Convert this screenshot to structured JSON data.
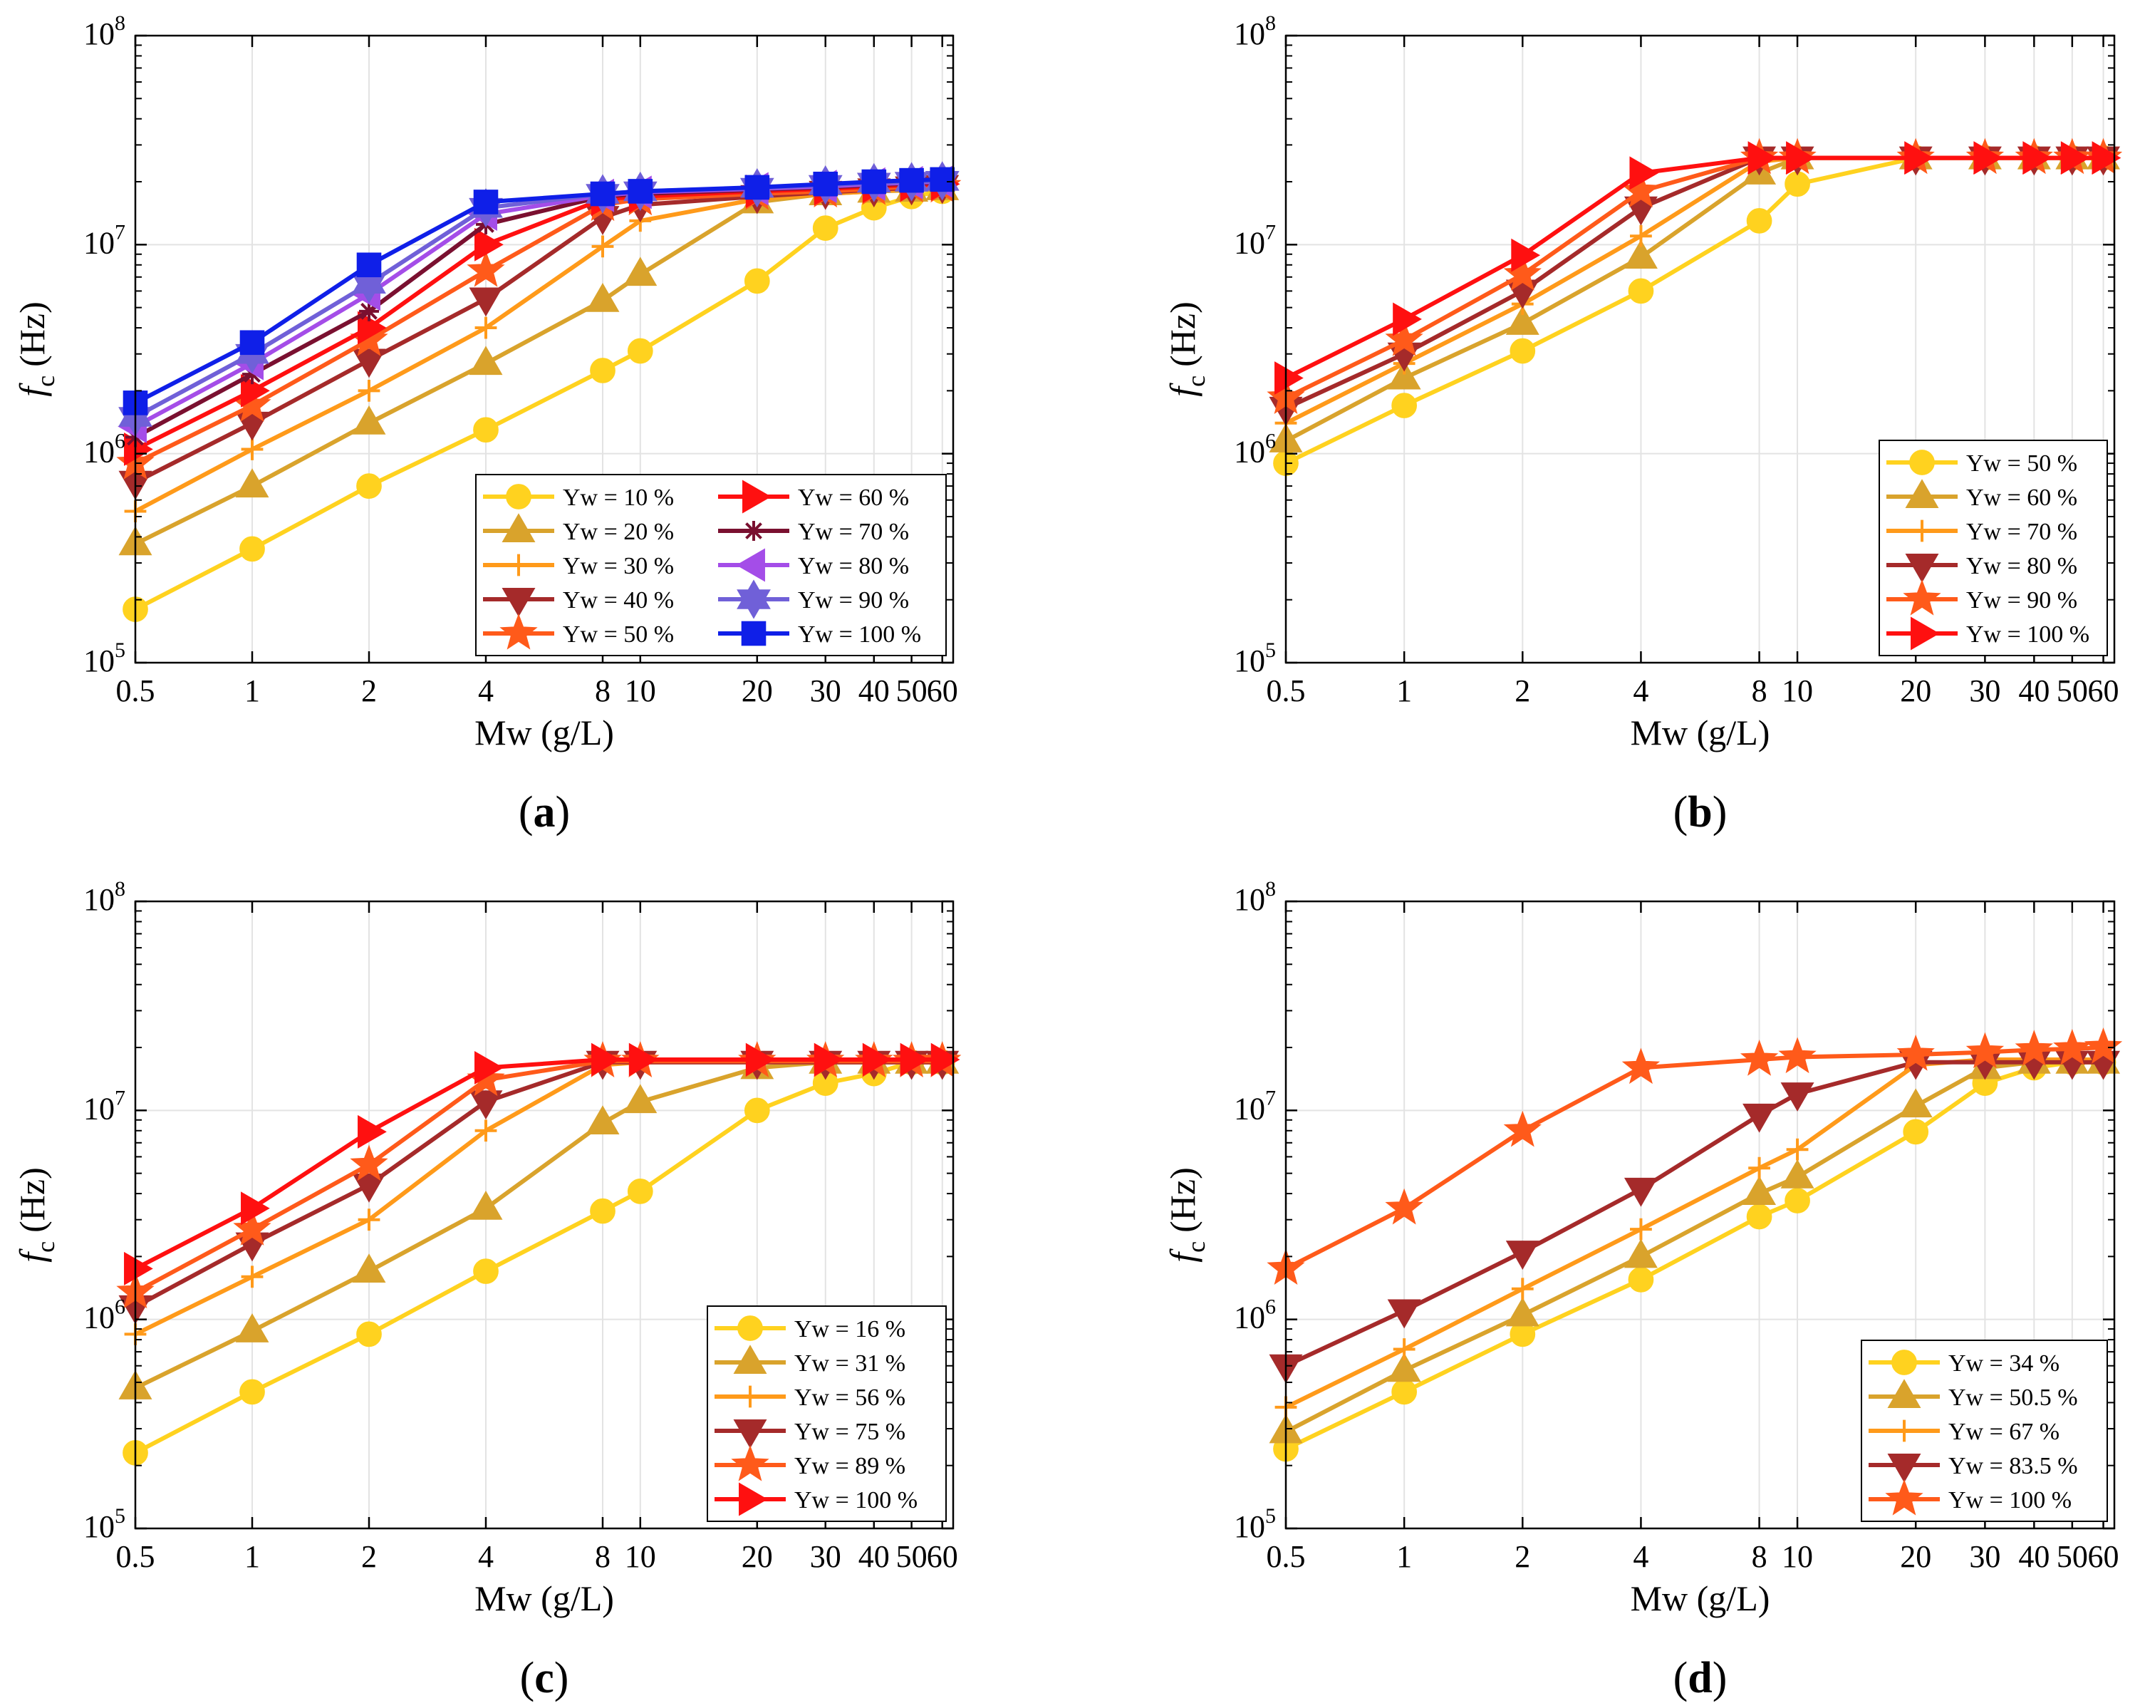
{
  "chart_data": [
    {
      "type": "line",
      "panel_label": "a",
      "title": "",
      "xlabel": "Mw (g/L)",
      "ylabel_main": "f",
      "ylabel_sub": "c",
      "ylabel_unit": "(Hz)",
      "xscale": "log",
      "yscale": "log",
      "xlim": [
        0.5,
        64
      ],
      "ylim": [
        100000,
        100000000
      ],
      "x": [
        0.5,
        1,
        2,
        4,
        8,
        10,
        20,
        30,
        40,
        50,
        60
      ],
      "x_tick_values": [
        0.5,
        1,
        2,
        4,
        8,
        10,
        20,
        30,
        40,
        50,
        60
      ],
      "x_tick_labels": [
        "0.5",
        "1",
        "2",
        "4",
        "8",
        "10",
        "20",
        "30",
        "40",
        "50",
        "60"
      ],
      "y_tick_values": [
        100000,
        1000000,
        10000000,
        100000000
      ],
      "y_tick_labels": [
        {
          "base": "10",
          "exp": "5"
        },
        {
          "base": "10",
          "exp": "6"
        },
        {
          "base": "10",
          "exp": "7"
        },
        {
          "base": "10",
          "exp": "8"
        }
      ],
      "grid": true,
      "legend_position": "bottom-right",
      "legend_columns": 2,
      "series": [
        {
          "name": "Yw = 10 %",
          "color": "#FFD21F",
          "marker": "circle",
          "values": [
            180000,
            350000,
            700000,
            1300000,
            2500000,
            3100000,
            6700000,
            12000000,
            15000000,
            17000000,
            18000000
          ]
        },
        {
          "name": "Yw = 20 %",
          "color": "#D9A32C",
          "marker": "triangle-up",
          "values": [
            370000,
            700000,
            1400000,
            2700000,
            5400000,
            7200000,
            16000000,
            17500000,
            18000000,
            18200000,
            18500000
          ]
        },
        {
          "name": "Yw = 30 %",
          "color": "#FF9A1A",
          "marker": "plus",
          "values": [
            530000,
            1050000,
            2000000,
            4000000,
            9800000,
            13000000,
            16500000,
            17500000,
            18000000,
            18500000,
            18500000
          ]
        },
        {
          "name": "Yw = 40 %",
          "color": "#A52A2A",
          "marker": "triangle-down",
          "values": [
            730000,
            1400000,
            2800000,
            5500000,
            13500000,
            15500000,
            17000000,
            17800000,
            18300000,
            18700000,
            19000000
          ]
        },
        {
          "name": "Yw = 50 %",
          "color": "#FF5A1A",
          "marker": "star",
          "values": [
            900000,
            1700000,
            3500000,
            7500000,
            15500000,
            16500000,
            17500000,
            18000000,
            18500000,
            19000000,
            19000000
          ]
        },
        {
          "name": "Yw = 60 %",
          "color": "#FF1010",
          "marker": "triangle-right",
          "values": [
            1050000,
            2000000,
            4000000,
            10000000,
            16500000,
            17000000,
            18000000,
            18500000,
            19000000,
            19300000,
            19500000
          ]
        },
        {
          "name": "Yw = 70 %",
          "color": "#7A1030",
          "marker": "asterisk",
          "values": [
            1200000,
            2400000,
            4800000,
            12500000,
            17000000,
            17500000,
            18300000,
            18800000,
            19300000,
            19600000,
            19800000
          ]
        },
        {
          "name": "Yw = 80 %",
          "color": "#A44DE8",
          "marker": "triangle-left",
          "values": [
            1350000,
            2700000,
            5800000,
            14000000,
            17200000,
            17800000,
            18500000,
            19000000,
            19500000,
            19800000,
            20000000
          ]
        },
        {
          "name": "Yw = 90 %",
          "color": "#7060D8",
          "marker": "hexagram",
          "values": [
            1500000,
            3000000,
            6500000,
            15000000,
            17500000,
            18000000,
            18700000,
            19300000,
            19800000,
            20000000,
            20200000
          ]
        },
        {
          "name": "Yw = 100 %",
          "color": "#0F1FE8",
          "marker": "square",
          "values": [
            1750000,
            3400000,
            8000000,
            16000000,
            17500000,
            18000000,
            18800000,
            19500000,
            20000000,
            20300000,
            20500000
          ]
        }
      ]
    },
    {
      "type": "line",
      "panel_label": "b",
      "title": "",
      "xlabel": "Mw (g/L)",
      "ylabel_main": "f",
      "ylabel_sub": "c",
      "ylabel_unit": "(Hz)",
      "xscale": "log",
      "yscale": "log",
      "xlim": [
        0.5,
        64
      ],
      "ylim": [
        100000,
        100000000
      ],
      "x": [
        0.5,
        1,
        2,
        4,
        8,
        10,
        20,
        30,
        40,
        50,
        60
      ],
      "x_tick_values": [
        0.5,
        1,
        2,
        4,
        8,
        10,
        20,
        30,
        40,
        50,
        60
      ],
      "x_tick_labels": [
        "0.5",
        "1",
        "2",
        "4",
        "8",
        "10",
        "20",
        "30",
        "40",
        "50",
        "60"
      ],
      "y_tick_values": [
        100000,
        1000000,
        10000000,
        100000000
      ],
      "y_tick_labels": [
        {
          "base": "10",
          "exp": "5"
        },
        {
          "base": "10",
          "exp": "6"
        },
        {
          "base": "10",
          "exp": "7"
        },
        {
          "base": "10",
          "exp": "8"
        }
      ],
      "grid": true,
      "legend_position": "bottom-right",
      "legend_columns": 1,
      "series": [
        {
          "name": "Yw = 50 %",
          "color": "#FFD21F",
          "marker": "circle",
          "values": [
            900000,
            1700000,
            3100000,
            6000000,
            13000000,
            19500000,
            26000000,
            26000000,
            26000000,
            26000000,
            26000000
          ]
        },
        {
          "name": "Yw = 60 %",
          "color": "#D9A32C",
          "marker": "triangle-up",
          "values": [
            1150000,
            2300000,
            4200000,
            8700000,
            22000000,
            26000000,
            26000000,
            26000000,
            26000000,
            26000000,
            26000000
          ]
        },
        {
          "name": "Yw = 70 %",
          "color": "#FF9A1A",
          "marker": "plus",
          "values": [
            1400000,
            2700000,
            5200000,
            11000000,
            25000000,
            26000000,
            26000000,
            26000000,
            26000000,
            26000000,
            26000000
          ]
        },
        {
          "name": "Yw = 80 %",
          "color": "#A52A2A",
          "marker": "triangle-down",
          "values": [
            1650000,
            3000000,
            6000000,
            15000000,
            26000000,
            26000000,
            26000000,
            26000000,
            26000000,
            26000000,
            26000000
          ]
        },
        {
          "name": "Yw = 90 %",
          "color": "#FF5A1A",
          "marker": "star",
          "values": [
            1850000,
            3500000,
            7200000,
            18000000,
            26000000,
            26000000,
            26000000,
            26000000,
            26000000,
            26000000,
            26000000
          ]
        },
        {
          "name": "Yw = 100 %",
          "color": "#FF1010",
          "marker": "triangle-right",
          "values": [
            2300000,
            4400000,
            8900000,
            22000000,
            26000000,
            26000000,
            26000000,
            26000000,
            26000000,
            26000000,
            26000000
          ]
        }
      ]
    },
    {
      "type": "line",
      "panel_label": "c",
      "title": "",
      "xlabel": "Mw (g/L)",
      "ylabel_main": "f",
      "ylabel_sub": "c",
      "ylabel_unit": "(Hz)",
      "xscale": "log",
      "yscale": "log",
      "xlim": [
        0.5,
        64
      ],
      "ylim": [
        100000,
        100000000
      ],
      "x": [
        0.5,
        1,
        2,
        4,
        8,
        10,
        20,
        30,
        40,
        50,
        60
      ],
      "x_tick_values": [
        0.5,
        1,
        2,
        4,
        8,
        10,
        20,
        30,
        40,
        50,
        60
      ],
      "x_tick_labels": [
        "0.5",
        "1",
        "2",
        "4",
        "8",
        "10",
        "20",
        "30",
        "40",
        "50",
        "60"
      ],
      "y_tick_values": [
        100000,
        1000000,
        10000000,
        100000000
      ],
      "y_tick_labels": [
        {
          "base": "10",
          "exp": "5"
        },
        {
          "base": "10",
          "exp": "6"
        },
        {
          "base": "10",
          "exp": "7"
        },
        {
          "base": "10",
          "exp": "8"
        }
      ],
      "grid": true,
      "legend_position": "bottom-right",
      "legend_columns": 1,
      "series": [
        {
          "name": "Yw = 16 %",
          "color": "#FFD21F",
          "marker": "circle",
          "values": [
            230000,
            450000,
            850000,
            1700000,
            3300000,
            4100000,
            10000000,
            13500000,
            15000000,
            17000000,
            17000000
          ]
        },
        {
          "name": "Yw = 31 %",
          "color": "#D9A32C",
          "marker": "triangle-up",
          "values": [
            470000,
            880000,
            1700000,
            3400000,
            8700000,
            11000000,
            16000000,
            17000000,
            17000000,
            17000000,
            17000000
          ]
        },
        {
          "name": "Yw = 56 %",
          "color": "#FF9A1A",
          "marker": "plus",
          "values": [
            850000,
            1600000,
            3000000,
            8000000,
            16500000,
            17000000,
            17000000,
            17000000,
            17000000,
            17000000,
            17000000
          ]
        },
        {
          "name": "Yw = 75 %",
          "color": "#A52A2A",
          "marker": "triangle-down",
          "values": [
            1150000,
            2300000,
            4400000,
            11000000,
            17000000,
            17000000,
            17000000,
            17000000,
            17000000,
            17000000,
            17000000
          ]
        },
        {
          "name": "Yw = 89 %",
          "color": "#FF5A1A",
          "marker": "star",
          "values": [
            1350000,
            2700000,
            5500000,
            14000000,
            17200000,
            17200000,
            17200000,
            17200000,
            17200000,
            17200000,
            17200000
          ]
        },
        {
          "name": "Yw = 100 %",
          "color": "#FF1010",
          "marker": "triangle-right",
          "values": [
            1750000,
            3400000,
            7900000,
            16000000,
            17500000,
            17500000,
            17500000,
            17500000,
            17500000,
            17500000,
            17500000
          ]
        }
      ]
    },
    {
      "type": "line",
      "panel_label": "d",
      "title": "",
      "xlabel": "Mw (g/L)",
      "ylabel_main": "f",
      "ylabel_sub": "c",
      "ylabel_unit": "(Hz)",
      "xscale": "log",
      "yscale": "log",
      "xlim": [
        0.5,
        64
      ],
      "ylim": [
        100000,
        100000000
      ],
      "x": [
        0.5,
        1,
        2,
        4,
        8,
        10,
        20,
        30,
        40,
        50,
        60
      ],
      "x_tick_values": [
        0.5,
        1,
        2,
        4,
        8,
        10,
        20,
        30,
        40,
        50,
        60
      ],
      "x_tick_labels": [
        "0.5",
        "1",
        "2",
        "4",
        "8",
        "10",
        "20",
        "30",
        "40",
        "50",
        "60"
      ],
      "y_tick_values": [
        100000,
        1000000,
        10000000,
        100000000
      ],
      "y_tick_labels": [
        {
          "base": "10",
          "exp": "5"
        },
        {
          "base": "10",
          "exp": "6"
        },
        {
          "base": "10",
          "exp": "7"
        },
        {
          "base": "10",
          "exp": "8"
        }
      ],
      "grid": true,
      "legend_position": "bottom-right",
      "legend_columns": 1,
      "series": [
        {
          "name": "Yw = 34 %",
          "color": "#FFD21F",
          "marker": "circle",
          "values": [
            240000,
            450000,
            850000,
            1550000,
            3100000,
            3700000,
            7900000,
            13500000,
            16000000,
            17000000,
            17000000
          ]
        },
        {
          "name": "Yw = 50.5 %",
          "color": "#D9A32C",
          "marker": "triangle-up",
          "values": [
            290000,
            570000,
            1050000,
            2000000,
            4000000,
            4800000,
            10500000,
            16000000,
            17000000,
            17000000,
            17000000
          ]
        },
        {
          "name": "Yw = 67 %",
          "color": "#FF9A1A",
          "marker": "plus",
          "values": [
            380000,
            720000,
            1400000,
            2700000,
            5300000,
            6500000,
            16500000,
            17500000,
            17500000,
            17500000,
            17500000
          ]
        },
        {
          "name": "Yw = 83.5 %",
          "color": "#A52A2A",
          "marker": "triangle-down",
          "values": [
            600000,
            1100000,
            2100000,
            4200000,
            9500000,
            12000000,
            17000000,
            17000000,
            17000000,
            17000000,
            17000000
          ]
        },
        {
          "name": "Yw = 100 %",
          "color": "#FF5A1A",
          "marker": "star",
          "values": [
            1750000,
            3400000,
            8000000,
            16000000,
            17500000,
            18000000,
            18500000,
            19000000,
            19500000,
            19700000,
            20000000
          ]
        }
      ]
    }
  ]
}
